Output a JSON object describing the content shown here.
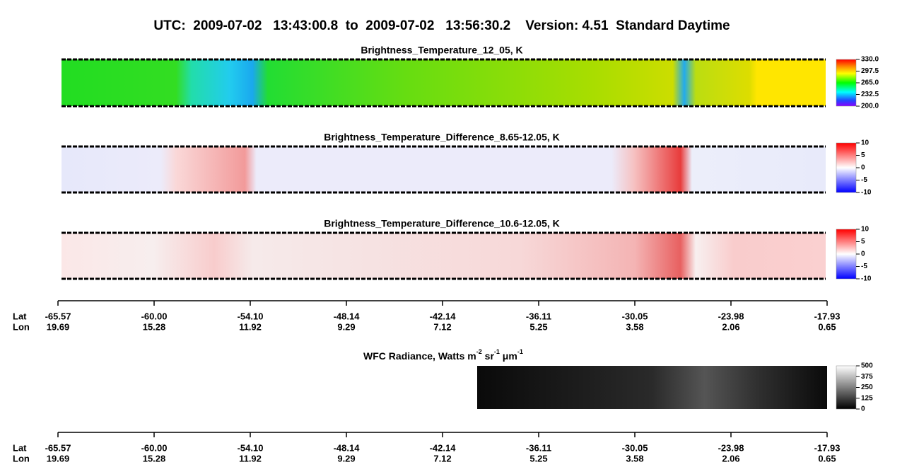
{
  "title": "UTC:  2009-07-02   13:43:00.8  to  2009-07-02   13:56:30.2    Version: 4.51  Standard Daytime",
  "panels": [
    {
      "title": "Brightness_Temperature_12_05, K",
      "colorbar": {
        "lim": [
          200,
          330
        ],
        "ticks": [
          {
            "value": 330,
            "label": "330.0"
          },
          {
            "value": 297.5,
            "label": "297.5"
          },
          {
            "value": 265,
            "label": "265.0"
          },
          {
            "value": 232.5,
            "label": "232.5"
          },
          {
            "value": 200,
            "label": "200.0"
          }
        ]
      }
    },
    {
      "title": "Brightness_Temperature_Difference_8.65-12.05, K",
      "colorbar": {
        "lim": [
          -10,
          10
        ],
        "ticks": [
          10,
          5,
          0,
          -5,
          -10
        ]
      }
    },
    {
      "title": "Brightness_Temperature_Difference_10.6-12.05, K",
      "colorbar": {
        "lim": [
          -10,
          10
        ],
        "ticks": [
          10,
          5,
          0,
          -5,
          -10
        ]
      }
    }
  ],
  "wfc": {
    "title_parts": [
      "WFC Radiance, Watts m",
      "-2",
      " sr",
      "-1",
      " μm",
      "-1"
    ],
    "colorbar": {
      "lim": [
        0,
        500
      ],
      "ticks": [
        500,
        375,
        250,
        125,
        0
      ]
    }
  },
  "axes": [
    {
      "row_labels": [
        "Lat",
        "Lon"
      ],
      "lat": [
        "-65.57",
        "-60.00",
        "-54.10",
        "-48.14",
        "-42.14",
        "-36.11",
        "-30.05",
        "-23.98",
        "-17.93"
      ],
      "lon": [
        "19.69",
        "15.28",
        "11.92",
        "9.29",
        "7.12",
        "5.25",
        "3.58",
        "2.06",
        "0.65"
      ]
    },
    {
      "row_labels": [
        "Lat",
        "Lon"
      ],
      "lat": [
        "-65.57",
        "-60.00",
        "-54.10",
        "-48.14",
        "-42.14",
        "-36.11",
        "-30.05",
        "-23.98",
        "-17.93"
      ],
      "lon": [
        "19.69",
        "15.28",
        "11.92",
        "9.29",
        "7.12",
        "5.25",
        "3.58",
        "2.06",
        "0.65"
      ]
    }
  ]
}
